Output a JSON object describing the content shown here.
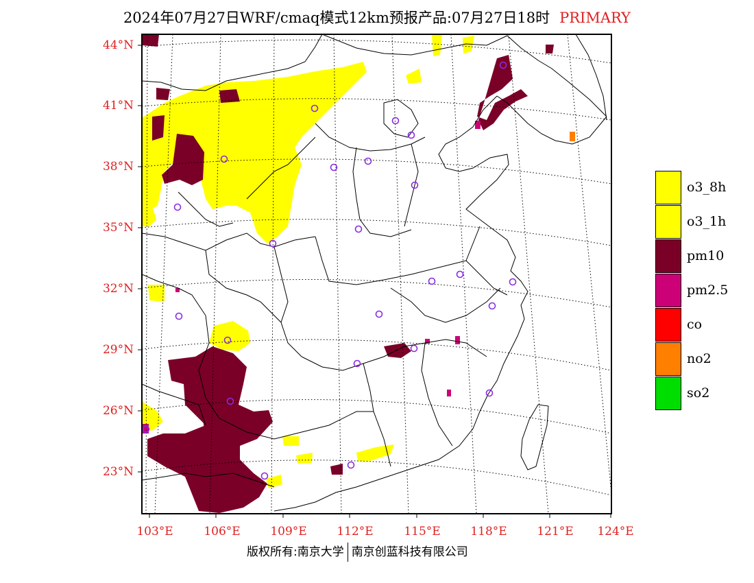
{
  "title": {
    "main": "2024年07月27日WRF/cmaq模式12km预报产品:07月27日18时",
    "tag": "PRIMARY"
  },
  "axes": {
    "lat_labels": [
      "44°N",
      "41°N",
      "38°N",
      "35°N",
      "32°N",
      "29°N",
      "26°N",
      "23°N"
    ],
    "lon_labels": [
      "103°E",
      "106°E",
      "109°E",
      "112°E",
      "115°E",
      "118°E",
      "121°E",
      "124°E"
    ]
  },
  "legend": [
    {
      "label": "o3_8h",
      "color": "#ffff00"
    },
    {
      "label": "o3_1h",
      "color": "#ffff00"
    },
    {
      "label": "pm10",
      "color": "#7a0028"
    },
    {
      "label": "pm2.5",
      "color": "#cc0077"
    },
    {
      "label": "co",
      "color": "#ff0000"
    },
    {
      "label": "no2",
      "color": "#ff7f00"
    },
    {
      "label": "so2",
      "color": "#00dd00"
    }
  ],
  "credits": {
    "left": "版权所有:南京大学",
    "right": "南京创蓝科技有限公司"
  },
  "colors": {
    "o3": "#ffff00",
    "pm10": "#7a0028",
    "pm25": "#cc0077",
    "no2": "#ff7f00",
    "station": "#8a2be2",
    "axis_label": "#e02020"
  }
}
